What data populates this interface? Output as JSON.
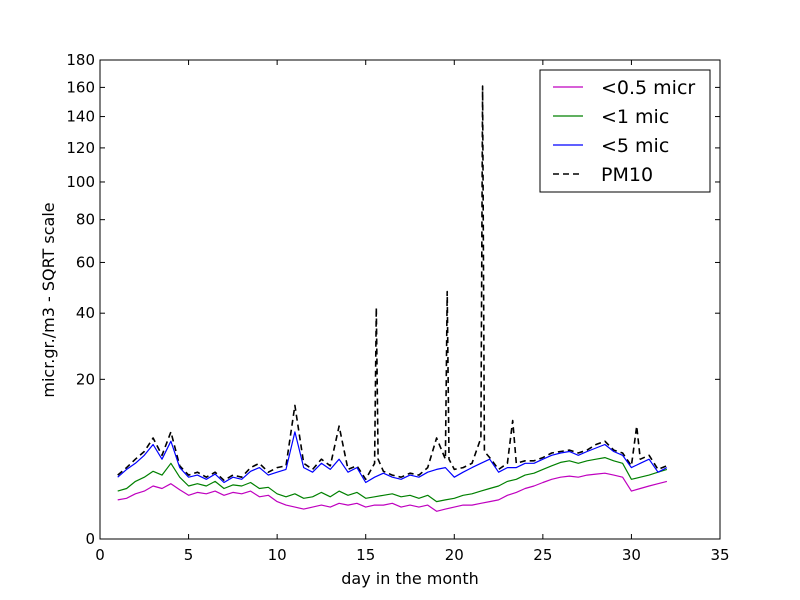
{
  "chart_data": {
    "type": "line",
    "title": "",
    "xlabel": "day in the month",
    "ylabel": "micr.gr./m3 - SQRT scale",
    "y_scale": "sqrt",
    "xlim": [
      0,
      35
    ],
    "ylim": [
      0,
      180
    ],
    "xticks": [
      0,
      5,
      10,
      15,
      20,
      25,
      30,
      35
    ],
    "yticks": [
      0,
      20,
      40,
      60,
      80,
      100,
      120,
      140,
      160,
      180
    ],
    "grid": false,
    "legend_position": "top-right",
    "series": [
      {
        "name": "<0.5 micr",
        "color": "#bf00bf",
        "style": "solid",
        "x": [
          1,
          1.5,
          2,
          2.5,
          3,
          3.5,
          4,
          4.5,
          5,
          5.5,
          6,
          6.5,
          7,
          7.5,
          8,
          8.5,
          9,
          9.5,
          10,
          10.5,
          11,
          11.5,
          12,
          12.5,
          13,
          13.5,
          14,
          14.5,
          15,
          15.5,
          16,
          16.5,
          17,
          17.5,
          18,
          18.5,
          19,
          19.5,
          20,
          20.5,
          21,
          21.5,
          22,
          22.5,
          23,
          23.5,
          24,
          24.5,
          25,
          25.5,
          26,
          26.5,
          27,
          27.5,
          28,
          28.5,
          29,
          29.5,
          30,
          30.5,
          31,
          31.5,
          32
        ],
        "y": [
          1.2,
          1.3,
          1.6,
          1.8,
          2.2,
          2.0,
          2.4,
          1.9,
          1.5,
          1.7,
          1.6,
          1.8,
          1.5,
          1.7,
          1.6,
          1.8,
          1.4,
          1.5,
          1.1,
          0.9,
          0.8,
          0.7,
          0.8,
          0.9,
          0.8,
          1.0,
          0.9,
          1.0,
          0.8,
          0.9,
          0.9,
          1.0,
          0.8,
          0.9,
          0.8,
          0.9,
          0.6,
          0.7,
          0.8,
          0.9,
          0.9,
          1.0,
          1.1,
          1.2,
          1.5,
          1.7,
          2.0,
          2.2,
          2.5,
          2.8,
          3.0,
          3.1,
          3.0,
          3.2,
          3.3,
          3.4,
          3.2,
          3.0,
          1.8,
          2.0,
          2.2,
          2.4,
          2.6
        ]
      },
      {
        "name": "<1 mic",
        "color": "#008000",
        "style": "solid",
        "x": [
          1,
          1.5,
          2,
          2.5,
          3,
          3.5,
          4,
          4.5,
          5,
          5.5,
          6,
          6.5,
          7,
          7.5,
          8,
          8.5,
          9,
          9.5,
          10,
          10.5,
          11,
          11.5,
          12,
          12.5,
          13,
          13.5,
          14,
          14.5,
          15,
          15.5,
          16,
          16.5,
          17,
          17.5,
          18,
          18.5,
          19,
          19.5,
          20,
          20.5,
          21,
          21.5,
          22,
          22.5,
          23,
          23.5,
          24,
          24.5,
          25,
          25.5,
          26,
          26.5,
          27,
          27.5,
          28,
          28.5,
          29,
          29.5,
          30,
          30.5,
          31,
          31.5,
          32
        ],
        "y": [
          1.8,
          2.0,
          2.6,
          3.0,
          3.6,
          3.2,
          4.5,
          3.0,
          2.2,
          2.4,
          2.2,
          2.6,
          2.0,
          2.3,
          2.2,
          2.5,
          2.0,
          2.1,
          1.6,
          1.4,
          1.6,
          1.3,
          1.4,
          1.7,
          1.4,
          1.8,
          1.5,
          1.7,
          1.3,
          1.4,
          1.5,
          1.6,
          1.4,
          1.5,
          1.3,
          1.5,
          1.1,
          1.2,
          1.3,
          1.5,
          1.6,
          1.8,
          2.0,
          2.2,
          2.6,
          2.8,
          3.2,
          3.4,
          3.8,
          4.2,
          4.6,
          4.8,
          4.5,
          4.8,
          5.0,
          5.2,
          4.8,
          4.5,
          2.8,
          3.0,
          3.2,
          3.5,
          3.8
        ]
      },
      {
        "name": "<5 mic",
        "color": "#0000ff",
        "style": "solid",
        "x": [
          1,
          1.5,
          2,
          2.5,
          3,
          3.5,
          4,
          4.5,
          5,
          5.5,
          6,
          6.5,
          7,
          7.5,
          8,
          8.5,
          9,
          9.5,
          10,
          10.5,
          11,
          11.5,
          12,
          12.5,
          13,
          13.5,
          14,
          14.5,
          15,
          15.5,
          16,
          16.5,
          17,
          17.5,
          18,
          18.5,
          19,
          19.5,
          20,
          20.5,
          21,
          21.5,
          22,
          22.5,
          23,
          23.5,
          24,
          24.5,
          25,
          25.5,
          26,
          26.5,
          27,
          27.5,
          28,
          28.5,
          29,
          29.5,
          30,
          30.5,
          31,
          31.5,
          32
        ],
        "y": [
          3.0,
          3.8,
          4.5,
          5.5,
          7.0,
          5.0,
          7.5,
          4.0,
          3.0,
          3.2,
          2.8,
          3.3,
          2.5,
          3.0,
          2.8,
          3.6,
          4.0,
          3.2,
          3.5,
          3.8,
          9.0,
          4.0,
          3.5,
          4.5,
          3.8,
          5.0,
          3.5,
          4.0,
          2.5,
          3.0,
          3.4,
          3.0,
          2.8,
          3.2,
          3.0,
          3.5,
          3.8,
          4.0,
          3.0,
          3.5,
          4.0,
          4.5,
          5.0,
          3.5,
          4.0,
          4.0,
          4.5,
          4.5,
          5.0,
          5.5,
          5.8,
          6.0,
          5.5,
          6.0,
          6.5,
          7.0,
          6.0,
          5.5,
          4.0,
          4.5,
          5.0,
          3.5,
          4.0
        ]
      },
      {
        "name": "PM10",
        "color": "#000000",
        "style": "dashed",
        "x": [
          1,
          1.5,
          2,
          2.5,
          3,
          3.5,
          4,
          4.5,
          5,
          5.5,
          6,
          6.5,
          7,
          7.5,
          8,
          8.5,
          9,
          9.5,
          10,
          10.5,
          11,
          11.5,
          12,
          12.5,
          13,
          13.5,
          14,
          14.5,
          15,
          15.5,
          15.6,
          15.7,
          16,
          16.5,
          17,
          17.5,
          18,
          18.5,
          19,
          19.5,
          19.6,
          19.7,
          20,
          20.5,
          21,
          21.5,
          21.6,
          21.7,
          22,
          22.5,
          23,
          23.3,
          23.5,
          24,
          24.5,
          25,
          25.5,
          26,
          26.5,
          27,
          27.5,
          28,
          28.5,
          29,
          29.5,
          30,
          30.3,
          30.5,
          31,
          31.5,
          32
        ],
        "y": [
          3.2,
          4.0,
          5.0,
          6.0,
          8.0,
          5.5,
          9.0,
          4.2,
          3.2,
          3.5,
          3.0,
          3.5,
          2.7,
          3.2,
          3.0,
          4.0,
          4.5,
          3.5,
          4.0,
          4.2,
          14.0,
          4.5,
          3.8,
          5.0,
          4.2,
          10.0,
          3.8,
          4.2,
          2.8,
          4.5,
          42,
          5.0,
          3.6,
          3.2,
          3.0,
          3.4,
          3.2,
          4.0,
          8.0,
          5.0,
          48,
          5.0,
          3.8,
          4.0,
          4.5,
          8.0,
          161,
          6.0,
          5.2,
          3.8,
          4.5,
          11.0,
          4.5,
          4.8,
          4.8,
          5.2,
          5.8,
          6.0,
          6.2,
          5.8,
          6.2,
          7.0,
          7.5,
          6.2,
          5.8,
          4.2,
          10.0,
          5.0,
          5.5,
          3.8,
          4.2
        ]
      }
    ]
  }
}
